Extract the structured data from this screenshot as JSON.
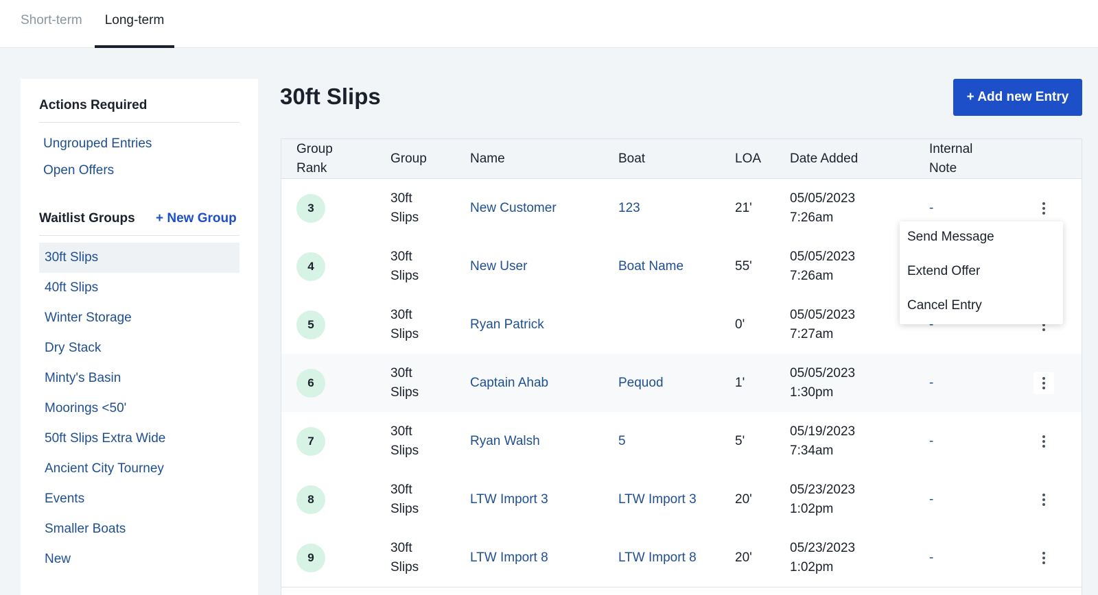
{
  "tabs": [
    {
      "label": "Short-term",
      "active": false
    },
    {
      "label": "Long-term",
      "active": true
    }
  ],
  "sidebar": {
    "actions_heading": "Actions Required",
    "actions": [
      "Ungrouped Entries",
      "Open Offers"
    ],
    "groups_heading": "Waitlist Groups",
    "new_group_label": "+ New Group",
    "groups": [
      "30ft Slips",
      "40ft Slips",
      "Winter Storage",
      "Dry Stack",
      "Minty's Basin",
      "Moorings <50'",
      "50ft Slips Extra Wide",
      "Ancient City Tourney",
      "Events",
      "Smaller Boats",
      "New"
    ],
    "selected_group": "30ft Slips"
  },
  "main": {
    "title": "30ft Slips",
    "add_button_label": "+ Add new Entry"
  },
  "table": {
    "headers": {
      "rank_1": "Group",
      "rank_2": "Rank",
      "group": "Group",
      "name": "Name",
      "boat": "Boat",
      "loa": "LOA",
      "date": "Date Added",
      "note_1": "Internal",
      "note_2": "Note"
    },
    "rows": [
      {
        "rank": "3",
        "group_1": "30ft",
        "group_2": "Slips",
        "name": "New Customer",
        "boat": "123",
        "loa": "21'",
        "date": "05/05/2023",
        "time": "7:26am",
        "note": "-"
      },
      {
        "rank": "4",
        "group_1": "30ft",
        "group_2": "Slips",
        "name": "New User",
        "boat": "Boat Name",
        "loa": "55'",
        "date": "05/05/2023",
        "time": "7:26am",
        "note": "-"
      },
      {
        "rank": "5",
        "group_1": "30ft",
        "group_2": "Slips",
        "name": "Ryan Patrick",
        "boat": "",
        "loa": "0'",
        "date": "05/05/2023",
        "time": "7:27am",
        "note": "-"
      },
      {
        "rank": "6",
        "group_1": "30ft",
        "group_2": "Slips",
        "name": "Captain Ahab",
        "boat": "Pequod",
        "loa": "1'",
        "date": "05/05/2023",
        "time": "1:30pm",
        "note": "-"
      },
      {
        "rank": "7",
        "group_1": "30ft",
        "group_2": "Slips",
        "name": "Ryan Walsh",
        "boat": "5",
        "loa": "5'",
        "date": "05/19/2023",
        "time": "7:34am",
        "note": "-"
      },
      {
        "rank": "8",
        "group_1": "30ft",
        "group_2": "Slips",
        "name": "LTW Import 3",
        "boat": "LTW Import 3",
        "loa": "20'",
        "date": "05/23/2023",
        "time": "1:02pm",
        "note": "-"
      },
      {
        "rank": "9",
        "group_1": "30ft",
        "group_2": "Slips",
        "name": "LTW Import 8",
        "boat": "LTW Import 8",
        "loa": "20'",
        "date": "05/23/2023",
        "time": "1:02pm",
        "note": "-"
      }
    ]
  },
  "row_menu": {
    "items": [
      "Send Message",
      "Extend Offer",
      "Cancel Entry"
    ]
  },
  "icons": {
    "row_action": "more-vertical-icon"
  },
  "colors": {
    "accent": "#1d4fc8",
    "link": "#1f4f91",
    "rank_badge": "#d6f3e6"
  }
}
